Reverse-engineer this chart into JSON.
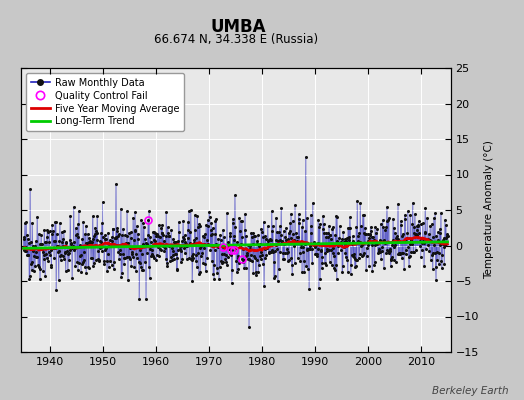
{
  "title": "UMBA",
  "subtitle": "66.674 N, 34.338 E (Russia)",
  "ylabel": "Temperature Anomaly (°C)",
  "watermark": "Berkeley Earth",
  "xlim": [
    1934.5,
    2015.5
  ],
  "ylim": [
    -15,
    25
  ],
  "yticks": [
    -15,
    -10,
    -5,
    0,
    5,
    10,
    15,
    20,
    25
  ],
  "xticks": [
    1940,
    1950,
    1960,
    1970,
    1980,
    1990,
    2000,
    2010
  ],
  "bg_color": "#c8c8c8",
  "plot_bg_color": "#e8e8e8",
  "raw_line_color": "#2222bb",
  "raw_dot_color": "#111111",
  "moving_avg_color": "#dd0000",
  "trend_color": "#00cc00",
  "qc_fail_color": "#ff00ff",
  "seed": 42,
  "start_year": 1935,
  "end_year": 2014,
  "qc_fail_times": [
    1958.5,
    1972.5,
    1974.2,
    1974.6,
    1976.1
  ]
}
